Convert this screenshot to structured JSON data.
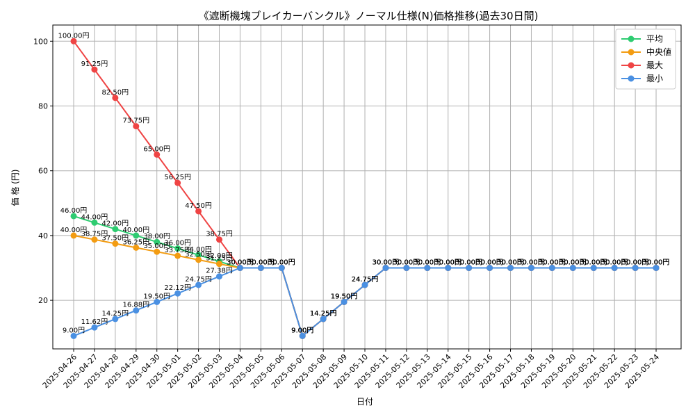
{
  "chart_data": {
    "type": "line",
    "title": "《遮断機塊ブレイカーバンクル》ノーマル仕様(N)価格推移(過去30日間)",
    "xlabel": "日付",
    "ylabel": "価 格 (円)",
    "ylim": [
      5,
      105
    ],
    "yticks": [
      20,
      40,
      60,
      80,
      100
    ],
    "grid": true,
    "legend_position": "top-right",
    "value_suffix": "円",
    "x": [
      "2025-04-26",
      "2025-04-27",
      "2025-04-28",
      "2025-04-29",
      "2025-04-30",
      "2025-05-01",
      "2025-05-02",
      "2025-05-03",
      "2025-05-04",
      "2025-05-05",
      "2025-05-06",
      "2025-05-07",
      "2025-05-08",
      "2025-05-09",
      "2025-05-10",
      "2025-05-11",
      "2025-05-12",
      "2025-05-13",
      "2025-05-14",
      "2025-05-15",
      "2025-05-16",
      "2025-05-17",
      "2025-05-18",
      "2025-05-19",
      "2025-05-20",
      "2025-05-21",
      "2025-05-22",
      "2025-05-23",
      "2025-05-24"
    ],
    "series": [
      {
        "name": "平均",
        "color": "#2ecc71",
        "values": [
          46.0,
          44.0,
          42.0,
          40.0,
          38.0,
          36.0,
          34.0,
          32.0,
          30.0,
          30.0,
          30.0,
          9.0,
          14.25,
          19.5,
          24.75,
          30.0,
          30.0,
          30.0,
          30.0,
          30.0,
          30.0,
          30.0,
          30.0,
          30.0,
          30.0,
          30.0,
          30.0,
          30.0,
          30.0
        ]
      },
      {
        "name": "中央値",
        "color": "#f39c12",
        "values": [
          40.0,
          38.75,
          37.5,
          36.25,
          35.0,
          33.75,
          32.5,
          31.25,
          30.0,
          30.0,
          30.0,
          9.0,
          14.25,
          19.5,
          24.75,
          30.0,
          30.0,
          30.0,
          30.0,
          30.0,
          30.0,
          30.0,
          30.0,
          30.0,
          30.0,
          30.0,
          30.0,
          30.0,
          30.0
        ]
      },
      {
        "name": "最大",
        "color": "#ef4444",
        "values": [
          100.0,
          91.25,
          82.5,
          73.75,
          65.0,
          56.25,
          47.5,
          38.75,
          30.0,
          30.0,
          30.0,
          9.0,
          14.25,
          19.5,
          24.75,
          30.0,
          30.0,
          30.0,
          30.0,
          30.0,
          30.0,
          30.0,
          30.0,
          30.0,
          30.0,
          30.0,
          30.0,
          30.0,
          30.0
        ]
      },
      {
        "name": "最小",
        "color": "#4a90e2",
        "values": [
          9.0,
          11.62,
          14.25,
          16.88,
          19.5,
          22.12,
          24.75,
          27.38,
          30.0,
          30.0,
          30.0,
          9.0,
          14.25,
          19.5,
          24.75,
          30.0,
          30.0,
          30.0,
          30.0,
          30.0,
          30.0,
          30.0,
          30.0,
          30.0,
          30.0,
          30.0,
          30.0,
          30.0,
          30.0
        ]
      }
    ]
  }
}
